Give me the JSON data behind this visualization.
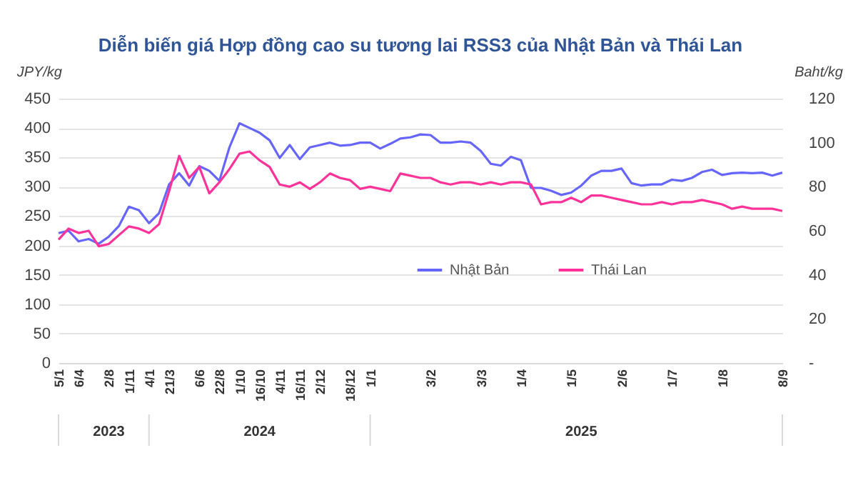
{
  "chart_data": {
    "type": "line",
    "title": "Diễn biến giá Hợp đồng cao su tương lai RSS3 của Nhật Bản và Thái Lan",
    "ylabel": "JPY/kg",
    "y2label": "Baht/kg",
    "categories": [
      "5/1",
      null,
      "6/4",
      null,
      null,
      "2/8",
      null,
      "1/11",
      null,
      "4/1",
      null,
      "21/3",
      null,
      null,
      "6/6",
      null,
      "22/8",
      null,
      "1/10",
      null,
      "16/10",
      null,
      "4/11",
      null,
      "16/11",
      null,
      "2/12",
      null,
      null,
      "18/12",
      null,
      "1/1",
      null,
      null,
      null,
      null,
      null,
      "3/2",
      null,
      null,
      null,
      null,
      "3/3",
      null,
      null,
      null,
      "1/4",
      null,
      null,
      null,
      null,
      "1/5",
      null,
      null,
      null,
      null,
      "2/6",
      null,
      null,
      null,
      null,
      "1/7",
      null,
      null,
      null,
      null,
      "1/8",
      null,
      null,
      null,
      null,
      null,
      "8/9"
    ],
    "annotations": [
      "2023",
      "2024",
      "2025"
    ],
    "series": [
      {
        "name": "Nhật Bản",
        "color": "#6666ff",
        "values": [
          221,
          225,
          207,
          211,
          203,
          215,
          233,
          266,
          260,
          238,
          255,
          304,
          323,
          302,
          335,
          327,
          310,
          367,
          408,
          400,
          392,
          379,
          349,
          371,
          347,
          367,
          371,
          375,
          370,
          371,
          375,
          375,
          365,
          373,
          382,
          384,
          389,
          388,
          375,
          375,
          377,
          375,
          361,
          339,
          336,
          351,
          345,
          298,
          298,
          293,
          286,
          290,
          302,
          319,
          327,
          327,
          331,
          306,
          302,
          304,
          304,
          312,
          310,
          315,
          325,
          329,
          320,
          323,
          324,
          323,
          324,
          319,
          324
        ]
      },
      {
        "name": "Thái Lan",
        "color": "#ff3399",
        "axis": "y2",
        "values": [
          56,
          61,
          59,
          60,
          53,
          54,
          58,
          62,
          61,
          59,
          63,
          78,
          94,
          84,
          89,
          77,
          82,
          88,
          95,
          96,
          92,
          89,
          81,
          80,
          82,
          79,
          82,
          86,
          84,
          83,
          79,
          80,
          79,
          78,
          86,
          85,
          84,
          84,
          82,
          81,
          82,
          82,
          81,
          82,
          81,
          82,
          82,
          81,
          72,
          73,
          73,
          75,
          73,
          76,
          76,
          75,
          74,
          73,
          72,
          72,
          73,
          72,
          73,
          73,
          74,
          73,
          72,
          70,
          71,
          70,
          70,
          70,
          69
        ]
      }
    ],
    "ylim": [
      0,
      450
    ],
    "yticks": [
      0,
      50,
      100,
      150,
      200,
      250,
      300,
      350,
      400,
      450
    ],
    "y2lim": [
      0,
      120
    ],
    "y2ticks": [
      {
        "value": 0,
        "label": "-"
      },
      20,
      40,
      60,
      80,
      100,
      120
    ],
    "grid": "y",
    "legend": "right",
    "marker": "none",
    "line_style": "solid"
  }
}
